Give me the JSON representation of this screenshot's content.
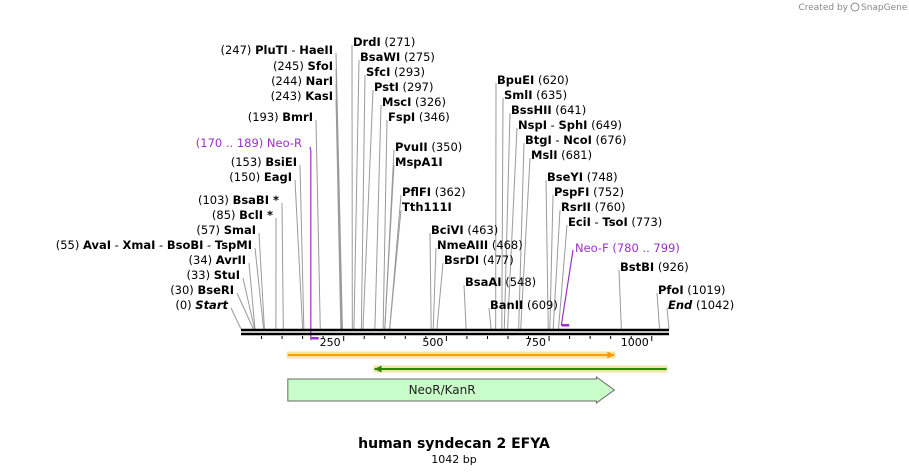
{
  "title": "human syndecan 2 EFYA",
  "length_label": "1042 bp",
  "length_bp": 1042,
  "brand_prefix": "Created by",
  "brand_name": "SnapGene",
  "axis_ticks": [
    "250",
    "500",
    "750",
    "1000"
  ],
  "axis_tick_values": [
    250,
    500,
    750,
    1000
  ],
  "sites": [
    {
      "enzymes": [
        "PluTI",
        "HaeII"
      ],
      "pos": "(247)",
      "bp": 247,
      "side": "left"
    },
    {
      "enzymes": [
        "SfoI"
      ],
      "pos": "(245)",
      "bp": 245,
      "side": "left"
    },
    {
      "enzymes": [
        "NarI"
      ],
      "pos": "(244)",
      "bp": 244,
      "side": "left"
    },
    {
      "enzymes": [
        "KasI"
      ],
      "pos": "(243)",
      "bp": 243,
      "side": "left"
    },
    {
      "enzymes": [
        "BmrI"
      ],
      "pos": "(193)",
      "bp": 193,
      "side": "left"
    },
    {
      "enzymes": [
        "BsiEI"
      ],
      "pos": "(153)",
      "bp": 153,
      "side": "left"
    },
    {
      "enzymes": [
        "EagI"
      ],
      "pos": "(150)",
      "bp": 150,
      "side": "left"
    },
    {
      "enzymes": [
        "BsaBI *"
      ],
      "pos": "(103)",
      "bp": 103,
      "side": "left"
    },
    {
      "enzymes": [
        "BclI *"
      ],
      "pos": "(85)",
      "bp": 85,
      "side": "left"
    },
    {
      "enzymes": [
        "SmaI"
      ],
      "pos": "(57)",
      "bp": 57,
      "side": "left"
    },
    {
      "enzymes": [
        "AvaI",
        "XmaI",
        "BsoBI",
        "TspMI"
      ],
      "pos": "(55)",
      "bp": 55,
      "side": "left"
    },
    {
      "enzymes": [
        "AvrII"
      ],
      "pos": "(34)",
      "bp": 34,
      "side": "left"
    },
    {
      "enzymes": [
        "StuI"
      ],
      "pos": "(33)",
      "bp": 33,
      "side": "left"
    },
    {
      "enzymes": [
        "BseRI"
      ],
      "pos": "(30)",
      "bp": 30,
      "side": "left"
    },
    {
      "enzymes": [
        "Start"
      ],
      "pos": "(0)",
      "bp": 0,
      "side": "left",
      "italic": true
    },
    {
      "enzymes": [
        "DrdI"
      ],
      "pos": "(271)",
      "bp": 271,
      "side": "right"
    },
    {
      "enzymes": [
        "BsaWI"
      ],
      "pos": "(275)",
      "bp": 275,
      "side": "right"
    },
    {
      "enzymes": [
        "SfcI"
      ],
      "pos": "(293)",
      "bp": 293,
      "side": "right"
    },
    {
      "enzymes": [
        "PstI"
      ],
      "pos": "(297)",
      "bp": 297,
      "side": "right"
    },
    {
      "enzymes": [
        "MscI"
      ],
      "pos": "(326)",
      "bp": 326,
      "side": "right"
    },
    {
      "enzymes": [
        "FspI"
      ],
      "pos": "(346)",
      "bp": 346,
      "side": "right"
    },
    {
      "enzymes": [
        "PvuII"
      ],
      "pos": "(350)",
      "bp": 350,
      "side": "right"
    },
    {
      "enzymes": [
        "MspA1I"
      ],
      "pos": "",
      "bp": 350,
      "side": "right"
    },
    {
      "enzymes": [
        "PflFI"
      ],
      "pos": "(362)",
      "bp": 362,
      "side": "right"
    },
    {
      "enzymes": [
        "Tth111I"
      ],
      "pos": "",
      "bp": 362,
      "side": "right"
    },
    {
      "enzymes": [
        "BciVI"
      ],
      "pos": "(463)",
      "bp": 463,
      "side": "right"
    },
    {
      "enzymes": [
        "NmeAIII"
      ],
      "pos": "(468)",
      "bp": 468,
      "side": "right"
    },
    {
      "enzymes": [
        "BsrDI"
      ],
      "pos": "(477)",
      "bp": 477,
      "side": "right"
    },
    {
      "enzymes": [
        "BsaAI"
      ],
      "pos": "(548)",
      "bp": 548,
      "side": "right"
    },
    {
      "enzymes": [
        "BanII"
      ],
      "pos": "(609)",
      "bp": 609,
      "side": "right"
    },
    {
      "enzymes": [
        "BpuEI"
      ],
      "pos": "(620)",
      "bp": 620,
      "side": "right"
    },
    {
      "enzymes": [
        "SmlI"
      ],
      "pos": "(635)",
      "bp": 635,
      "side": "right"
    },
    {
      "enzymes": [
        "BssHII"
      ],
      "pos": "(641)",
      "bp": 641,
      "side": "right"
    },
    {
      "enzymes": [
        "NspI",
        "SphI"
      ],
      "pos": "(649)",
      "bp": 649,
      "side": "right"
    },
    {
      "enzymes": [
        "BtgI",
        "NcoI"
      ],
      "pos": "(676)",
      "bp": 676,
      "side": "right"
    },
    {
      "enzymes": [
        "MslI"
      ],
      "pos": "(681)",
      "bp": 681,
      "side": "right"
    },
    {
      "enzymes": [
        "BseYI"
      ],
      "pos": "(748)",
      "bp": 748,
      "side": "right"
    },
    {
      "enzymes": [
        "PspFI"
      ],
      "pos": "(752)",
      "bp": 752,
      "side": "right"
    },
    {
      "enzymes": [
        "RsrII"
      ],
      "pos": "(760)",
      "bp": 760,
      "side": "right"
    },
    {
      "enzymes": [
        "EciI",
        "TsoI"
      ],
      "pos": "(773)",
      "bp": 773,
      "side": "right"
    },
    {
      "enzymes": [
        "BstBI"
      ],
      "pos": "(926)",
      "bp": 926,
      "side": "right"
    },
    {
      "enzymes": [
        "PfoI"
      ],
      "pos": "(1019)",
      "bp": 1019,
      "side": "right"
    },
    {
      "enzymes": [
        "End"
      ],
      "pos": "(1042)",
      "bp": 1042,
      "side": "right",
      "italic": true
    }
  ],
  "primers": [
    {
      "name": "Neo-R",
      "range": "(170 .. 189)",
      "start": 170,
      "end": 189,
      "direction": "reverse",
      "color": "#9b30c8"
    },
    {
      "name": "Neo-F",
      "range": "(780 .. 799)",
      "start": 780,
      "end": 799,
      "direction": "forward",
      "color": "#9b30c8"
    }
  ],
  "tracks": [
    {
      "type": "forward-line",
      "start": 114,
      "end": 909,
      "color": "#ff9a00",
      "highlight": "#f3e3a6"
    },
    {
      "type": "reverse-line",
      "start": 325,
      "end": 1036,
      "color": "#2d8a00",
      "highlight": "#f3e3a6"
    }
  ],
  "feature": {
    "name": "NeoR/KanR",
    "start": 114,
    "end": 909,
    "direction": "forward",
    "fill": "#c8fcc8",
    "stroke": "#6a6a6a"
  }
}
